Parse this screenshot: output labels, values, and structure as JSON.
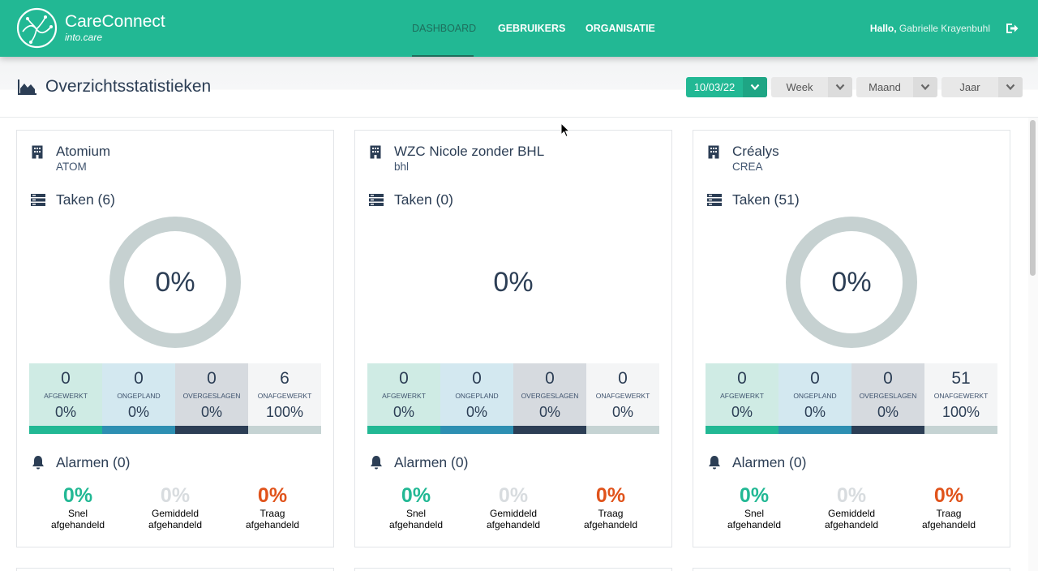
{
  "brand": {
    "name": "CareConnect",
    "subtitle": "into.care"
  },
  "nav": {
    "items": [
      "DASHBOARD",
      "GEBRUIKERS",
      "ORGANISATIE"
    ],
    "active": "DASHBOARD"
  },
  "user": {
    "greeting": "Hallo,",
    "name": "Gabrielle Krayenbuhl"
  },
  "page": {
    "title": "Overzichtsstatistieken"
  },
  "filters": {
    "date": "10/03/22",
    "week": "Week",
    "month": "Maand",
    "year": "Jaar"
  },
  "colors": {
    "primary": "#22b894",
    "afgewerkt": "#22b894",
    "ongepland": "#2d8fb2",
    "overgeslagen": "#2c3e55",
    "onafgewerkt": "#c5d3d3",
    "snel": "#22b894",
    "gemiddeld": "#d8dcdf",
    "traag": "#e0531b"
  },
  "cards": [
    {
      "name": "Atomium",
      "code": "ATOM",
      "tasks_title": "Taken (6)",
      "progress": "0%",
      "has_donut": true,
      "stats": [
        {
          "value": "0",
          "label": "AFGEWERKT",
          "pct": "0%"
        },
        {
          "value": "0",
          "label": "ONGEPLAND",
          "pct": "0%"
        },
        {
          "value": "0",
          "label": "OVERGESLAGEN",
          "pct": "0%"
        },
        {
          "value": "6",
          "label": "ONAFGEWERKT",
          "pct": "100%"
        }
      ],
      "alarms_title": "Alarmen (0)",
      "alarms": [
        {
          "pct": "0%",
          "line1": "Snel",
          "line2": "afgehandeld"
        },
        {
          "pct": "0%",
          "line1": "Gemiddeld",
          "line2": "afgehandeld"
        },
        {
          "pct": "0%",
          "line1": "Traag",
          "line2": "afgehandeld"
        }
      ]
    },
    {
      "name": "WZC Nicole zonder BHL",
      "code": "bhl",
      "tasks_title": "Taken (0)",
      "progress": "0%",
      "has_donut": false,
      "stats": [
        {
          "value": "0",
          "label": "AFGEWERKT",
          "pct": "0%"
        },
        {
          "value": "0",
          "label": "ONGEPLAND",
          "pct": "0%"
        },
        {
          "value": "0",
          "label": "OVERGESLAGEN",
          "pct": "0%"
        },
        {
          "value": "0",
          "label": "ONAFGEWERKT",
          "pct": "0%"
        }
      ],
      "alarms_title": "Alarmen (0)",
      "alarms": [
        {
          "pct": "0%",
          "line1": "Snel",
          "line2": "afgehandeld"
        },
        {
          "pct": "0%",
          "line1": "Gemiddeld",
          "line2": "afgehandeld"
        },
        {
          "pct": "0%",
          "line1": "Traag",
          "line2": "afgehandeld"
        }
      ]
    },
    {
      "name": "Créalys",
      "code": "CREA",
      "tasks_title": "Taken (51)",
      "progress": "0%",
      "has_donut": true,
      "stats": [
        {
          "value": "0",
          "label": "AFGEWERKT",
          "pct": "0%"
        },
        {
          "value": "0",
          "label": "ONGEPLAND",
          "pct": "0%"
        },
        {
          "value": "0",
          "label": "OVERGESLAGEN",
          "pct": "0%"
        },
        {
          "value": "51",
          "label": "ONAFGEWERKT",
          "pct": "100%"
        }
      ],
      "alarms_title": "Alarmen (0)",
      "alarms": [
        {
          "pct": "0%",
          "line1": "Snel",
          "line2": "afgehandeld"
        },
        {
          "pct": "0%",
          "line1": "Gemiddeld",
          "line2": "afgehandeld"
        },
        {
          "pct": "0%",
          "line1": "Traag",
          "line2": "afgehandeld"
        }
      ]
    }
  ]
}
